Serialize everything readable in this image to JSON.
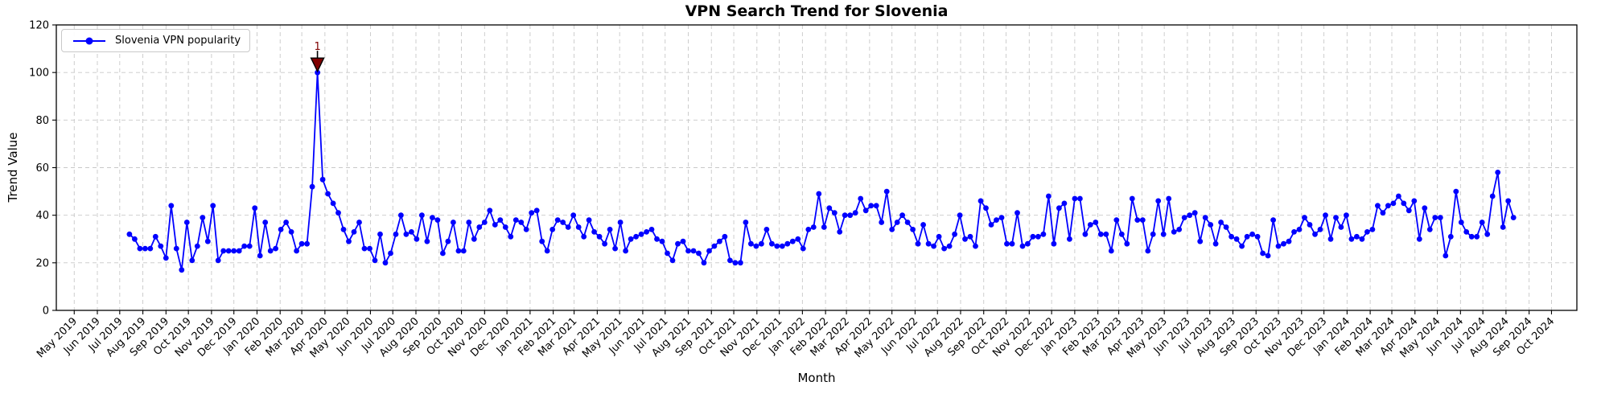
{
  "colors": {
    "line": "#0000ff",
    "marker": "#0000ff",
    "annotation": "#7f0000",
    "annotation_edge": "#000000",
    "grid": "#c8c8c8",
    "axis": "#000000",
    "legend_border": "#c9c9c9"
  },
  "annotation": {
    "text": "1",
    "marker": "triangle-down",
    "at_index": 36,
    "peak_value": 100
  },
  "chart_data": {
    "type": "line",
    "title": "VPN Search Trend for Slovenia",
    "xlabel": "Month",
    "ylabel": "Trend Value",
    "ylim": [
      0,
      120
    ],
    "yticks": [
      0,
      20,
      40,
      60,
      80,
      100,
      120
    ],
    "grid": true,
    "legend_position": "upper-left",
    "marker": "circle",
    "x_tick_labels": [
      "May 2019",
      "Jun 2019",
      "Jul 2019",
      "Aug 2019",
      "Sep 2019",
      "Oct 2019",
      "Nov 2019",
      "Dec 2019",
      "Jan 2020",
      "Feb 2020",
      "Mar 2020",
      "Apr 2020",
      "May 2020",
      "Jun 2020",
      "Jul 2020",
      "Aug 2020",
      "Sep 2020",
      "Oct 2020",
      "Nov 2020",
      "Dec 2020",
      "Jan 2021",
      "Feb 2021",
      "Mar 2021",
      "Apr 2021",
      "May 2021",
      "Jun 2021",
      "Jul 2021",
      "Aug 2021",
      "Sep 2021",
      "Oct 2021",
      "Nov 2021",
      "Dec 2021",
      "Jan 2022",
      "Feb 2022",
      "Mar 2022",
      "Apr 2022",
      "May 2022",
      "Jun 2022",
      "Jul 2022",
      "Aug 2022",
      "Sep 2022",
      "Oct 2022",
      "Nov 2022",
      "Dec 2022",
      "Jan 2023",
      "Feb 2023",
      "Mar 2023",
      "Apr 2023",
      "May 2023",
      "Jun 2023",
      "Jul 2023",
      "Aug 2023",
      "Sep 2023",
      "Oct 2023",
      "Nov 2023",
      "Dec 2023",
      "Jan 2024",
      "Feb 2024",
      "Mar 2024",
      "Apr 2024",
      "May 2024",
      "Jun 2024",
      "Jul 2024",
      "Aug 2024",
      "Sep 2024",
      "Oct 2024"
    ],
    "series": [
      {
        "name": "Slovenia VPN popularity",
        "start_date": "2019-07-14",
        "interval_days": 7,
        "values": [
          32,
          30,
          26,
          26,
          26,
          31,
          27,
          22,
          44,
          26,
          17,
          37,
          21,
          27,
          39,
          29,
          44,
          21,
          25,
          25,
          25,
          25,
          27,
          27,
          43,
          23,
          37,
          25,
          26,
          34,
          37,
          33,
          25,
          28,
          28,
          52,
          100,
          55,
          49,
          45,
          41,
          34,
          29,
          33,
          37,
          26,
          26,
          21,
          32,
          20,
          24,
          32,
          40,
          32,
          33,
          30,
          40,
          29,
          39,
          38,
          24,
          29,
          37,
          25,
          25,
          37,
          30,
          35,
          37,
          42,
          36,
          38,
          35,
          31,
          38,
          37,
          34,
          41,
          42,
          29,
          25,
          34,
          38,
          37,
          35,
          40,
          35,
          31,
          38,
          33,
          31,
          28,
          34,
          26,
          37,
          25,
          30,
          31,
          32,
          33,
          34,
          30,
          29,
          24,
          21,
          28,
          29,
          25,
          25,
          24,
          20,
          25,
          27,
          29,
          31,
          21,
          20,
          20,
          37,
          28,
          27,
          28,
          34,
          28,
          27,
          27,
          28,
          29,
          30,
          26,
          34,
          35,
          49,
          35,
          43,
          41,
          33,
          40,
          40,
          41,
          47,
          42,
          44,
          44,
          37,
          50,
          34,
          37,
          40,
          37,
          34,
          28,
          36,
          28,
          27,
          31,
          26,
          27,
          32,
          40,
          30,
          31,
          27,
          46,
          43,
          36,
          38,
          39,
          28,
          28,
          41,
          27,
          28,
          31,
          31,
          32,
          48,
          28,
          43,
          45,
          30,
          47,
          47,
          32,
          36,
          37,
          32,
          32,
          25,
          38,
          32,
          28,
          47,
          38,
          38,
          25,
          32,
          46,
          32,
          47,
          33,
          34,
          39,
          40,
          41,
          29,
          39,
          36,
          28,
          37,
          35,
          31,
          30,
          27,
          31,
          32,
          31,
          24,
          23,
          38,
          27,
          28,
          29,
          33,
          34,
          39,
          36,
          32,
          34,
          40,
          30,
          39,
          35,
          40,
          30,
          31,
          30,
          33,
          34,
          44,
          41,
          44,
          45,
          48,
          45,
          42,
          46,
          30,
          43,
          34,
          39,
          39,
          23,
          31,
          50,
          37,
          33,
          31,
          31,
          37,
          32,
          48,
          58,
          35,
          46,
          39
        ]
      }
    ]
  }
}
